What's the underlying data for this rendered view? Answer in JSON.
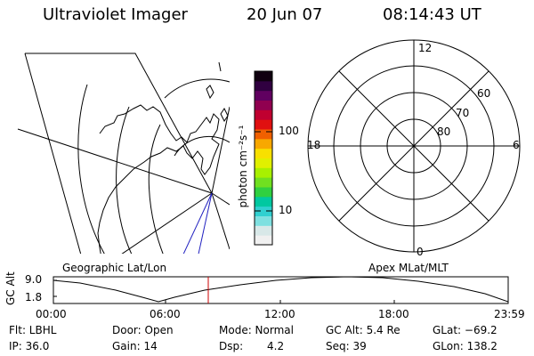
{
  "header": {
    "instrument": "Ultraviolet Imager",
    "date": "20 Jun 07",
    "time": "08:14:43 UT"
  },
  "colorbar": {
    "unit_label": "photon cm⁻²s⁻¹",
    "ticks": [
      "100",
      "10"
    ],
    "colors": [
      "#f0f0f0",
      "#d8e8e8",
      "#7fe0e0",
      "#30d0d0",
      "#00c8a0",
      "#30d040",
      "#70e020",
      "#a8f000",
      "#e0f000",
      "#f8e000",
      "#f8a800",
      "#f06000",
      "#e01010",
      "#c00030",
      "#900050",
      "#600060",
      "#300040",
      "#100010"
    ]
  },
  "left_panel": {
    "label": "Geographic Lat/Lon"
  },
  "right_panel": {
    "label": "Apex MLat/MLT",
    "mlt_labels": [
      "12",
      "18",
      "6",
      "0"
    ],
    "lat_labels": [
      "60",
      "70",
      "80"
    ]
  },
  "timeline": {
    "ylabel": "GC Alt",
    "ticks_y": [
      "9.0",
      "1.8"
    ],
    "ticks_x": [
      "00:00",
      "06:00",
      "12:00",
      "18:00",
      "23:59"
    ],
    "marker_color": "#cc0000"
  },
  "status": {
    "flt": "Flt: LBHL",
    "ip": "IP: 36.0",
    "door": "Door: Open",
    "gain": "Gain: 14",
    "mode": "Mode: Normal",
    "dsp": "Dsp:",
    "dsp_val": "4.2",
    "gcalt": "GC Alt: 5.4 Re",
    "seq": "Seq: 39",
    "glat": "GLat: −69.2",
    "glon": "GLon: 138.2"
  }
}
